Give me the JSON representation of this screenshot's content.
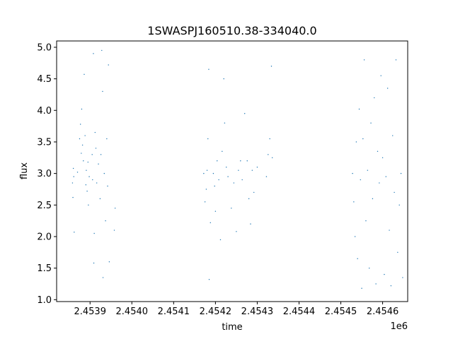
{
  "chart_data": {
    "type": "scatter",
    "title": "1SWASPJ160510.38-334040.0",
    "xlabel": "time",
    "ylabel": "flux",
    "x_offset_label": "1e6",
    "xlim": [
      2453820,
      2454660
    ],
    "ylim": [
      0.97,
      5.1
    ],
    "x_ticks": [
      2453900,
      2454000,
      2454100,
      2454200,
      2454300,
      2454400,
      2454500,
      2454600
    ],
    "x_tick_labels": [
      "2.4539",
      "2.4540",
      "2.4541",
      "2.4542",
      "2.4543",
      "2.4544",
      "2.4545",
      "2.4546"
    ],
    "y_ticks": [
      1.0,
      1.5,
      2.0,
      2.5,
      3.0,
      3.5,
      4.0,
      4.5,
      5.0
    ],
    "y_tick_labels": [
      "1.0",
      "1.5",
      "2.0",
      "2.5",
      "3.0",
      "3.5",
      "4.0",
      "4.5",
      "5.0"
    ],
    "grid": false,
    "marker_color": "#1f77b4",
    "series": [
      {
        "values": [
          [
            2453858,
            2.85
          ],
          [
            2453859,
            2.62
          ],
          [
            2453860,
            3.08
          ],
          [
            2453861,
            2.95
          ],
          [
            2453862,
            2.07
          ],
          [
            2453870,
            3.02
          ],
          [
            2453875,
            3.55
          ],
          [
            2453877,
            3.78
          ],
          [
            2453879,
            3.32
          ],
          [
            2453880,
            4.02
          ],
          [
            2453882,
            3.45
          ],
          [
            2453884,
            3.2
          ],
          [
            2453886,
            4.57
          ],
          [
            2453888,
            3.6
          ],
          [
            2453890,
            2.82
          ],
          [
            2453891,
            3.05
          ],
          [
            2453893,
            2.72
          ],
          [
            2453895,
            3.18
          ],
          [
            2453896,
            2.5
          ],
          [
            2453898,
            2.95
          ],
          [
            2453905,
            3.3
          ],
          [
            2453906,
            2.9
          ],
          [
            2453908,
            4.9
          ],
          [
            2453909,
            1.58
          ],
          [
            2453910,
            2.05
          ],
          [
            2453912,
            3.65
          ],
          [
            2453914,
            3.4
          ],
          [
            2453916,
            2.85
          ],
          [
            2453920,
            3.15
          ],
          [
            2453924,
            2.6
          ],
          [
            2453926,
            3.3
          ],
          [
            2453928,
            4.95
          ],
          [
            2453930,
            4.3
          ],
          [
            2453931,
            1.35
          ],
          [
            2453934,
            3.0
          ],
          [
            2453937,
            2.25
          ],
          [
            2453940,
            3.55
          ],
          [
            2453942,
            2.8
          ],
          [
            2453944,
            4.72
          ],
          [
            2453946,
            1.6
          ],
          [
            2453958,
            2.1
          ],
          [
            2453960,
            2.45
          ],
          [
            2454172,
            3.0
          ],
          [
            2454175,
            2.55
          ],
          [
            2454178,
            2.75
          ],
          [
            2454180,
            3.05
          ],
          [
            2454182,
            3.55
          ],
          [
            2454184,
            4.65
          ],
          [
            2454185,
            1.32
          ],
          [
            2454188,
            2.22
          ],
          [
            2454195,
            3.0
          ],
          [
            2454198,
            2.8
          ],
          [
            2454200,
            2.4
          ],
          [
            2454204,
            3.2
          ],
          [
            2454208,
            2.9
          ],
          [
            2454212,
            1.95
          ],
          [
            2454216,
            3.35
          ],
          [
            2454220,
            4.5
          ],
          [
            2454222,
            3.8
          ],
          [
            2454226,
            3.1
          ],
          [
            2454230,
            2.95
          ],
          [
            2454238,
            2.45
          ],
          [
            2454244,
            2.85
          ],
          [
            2454250,
            2.08
          ],
          [
            2454255,
            3.05
          ],
          [
            2454260,
            3.2
          ],
          [
            2454264,
            2.9
          ],
          [
            2454270,
            3.95
          ],
          [
            2454276,
            3.2
          ],
          [
            2454280,
            2.6
          ],
          [
            2454284,
            2.2
          ],
          [
            2454288,
            3.05
          ],
          [
            2454292,
            2.7
          ],
          [
            2454300,
            3.1
          ],
          [
            2454322,
            2.95
          ],
          [
            2454326,
            3.3
          ],
          [
            2454330,
            3.55
          ],
          [
            2454334,
            4.7
          ],
          [
            2454336,
            3.25
          ],
          [
            2454528,
            3.0
          ],
          [
            2454531,
            2.55
          ],
          [
            2454534,
            2.0
          ],
          [
            2454537,
            3.5
          ],
          [
            2454540,
            1.65
          ],
          [
            2454544,
            4.02
          ],
          [
            2454547,
            2.9
          ],
          [
            2454550,
            1.18
          ],
          [
            2454553,
            3.55
          ],
          [
            2454556,
            4.8
          ],
          [
            2454560,
            2.25
          ],
          [
            2454564,
            3.05
          ],
          [
            2454568,
            1.5
          ],
          [
            2454572,
            3.8
          ],
          [
            2454576,
            2.6
          ],
          [
            2454580,
            4.2
          ],
          [
            2454584,
            1.25
          ],
          [
            2454588,
            3.35
          ],
          [
            2454592,
            2.85
          ],
          [
            2454596,
            4.55
          ],
          [
            2454600,
            3.25
          ],
          [
            2454604,
            1.4
          ],
          [
            2454608,
            2.95
          ],
          [
            2454612,
            4.35
          ],
          [
            2454616,
            2.1
          ],
          [
            2454620,
            1.22
          ],
          [
            2454624,
            3.6
          ],
          [
            2454628,
            2.7
          ],
          [
            2454632,
            4.8
          ],
          [
            2454636,
            1.75
          ],
          [
            2454640,
            2.5
          ],
          [
            2454644,
            3.0
          ],
          [
            2454648,
            1.35
          ]
        ]
      }
    ]
  }
}
